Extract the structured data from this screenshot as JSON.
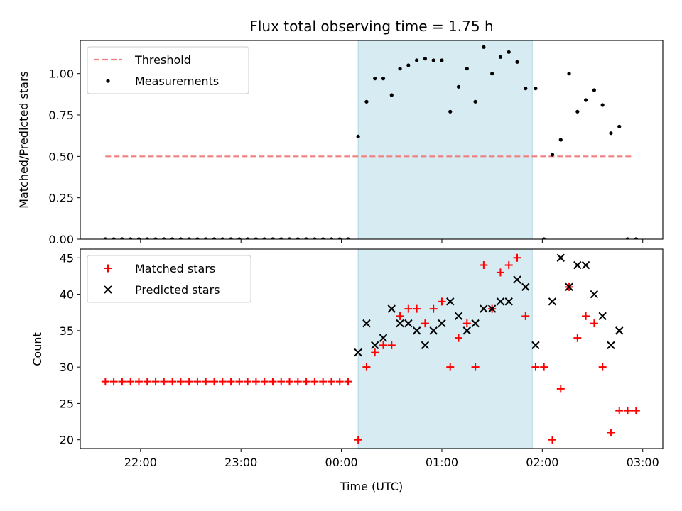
{
  "chart_data": [
    {
      "type": "scatter",
      "title": "Flux total observing time = 1.75 h",
      "ylabel": "Matched/Predicted stars",
      "xlabel": "",
      "xlim": [
        "21:24",
        "03:12"
      ],
      "ylim": [
        0,
        1.2
      ],
      "yticks": [
        0.0,
        0.25,
        0.5,
        0.75,
        1.0
      ],
      "ytick_labels": [
        "0.00",
        "0.25",
        "0.50",
        "0.75",
        "1.00"
      ],
      "xticks": [
        "22:00",
        "23:00",
        "00:00",
        "01:00",
        "02:00",
        "03:00"
      ],
      "legend_position": "upper left",
      "shaded_region": {
        "start": "00:10",
        "end": "01:54",
        "color": "#add8e6"
      },
      "series": [
        {
          "name": "Threshold",
          "kind": "hline",
          "style": "dashed",
          "color": "#f08080",
          "y": 0.5,
          "x_start": "21:39",
          "x_end": "02:54"
        },
        {
          "name": "Measurements",
          "kind": "points",
          "color": "#000000",
          "points": [
            [
              "21:39",
              0
            ],
            [
              "21:44",
              0
            ],
            [
              "21:49",
              0
            ],
            [
              "21:54",
              0
            ],
            [
              "21:59",
              0
            ],
            [
              "22:04",
              0
            ],
            [
              "22:09",
              0
            ],
            [
              "22:14",
              0
            ],
            [
              "22:19",
              0
            ],
            [
              "22:24",
              0
            ],
            [
              "22:29",
              0
            ],
            [
              "22:34",
              0
            ],
            [
              "22:39",
              0
            ],
            [
              "22:44",
              0
            ],
            [
              "22:49",
              0
            ],
            [
              "22:54",
              0
            ],
            [
              "22:59",
              0
            ],
            [
              "23:04",
              0
            ],
            [
              "23:09",
              0
            ],
            [
              "23:14",
              0
            ],
            [
              "23:19",
              0
            ],
            [
              "23:24",
              0
            ],
            [
              "23:29",
              0
            ],
            [
              "23:34",
              0
            ],
            [
              "23:39",
              0
            ],
            [
              "23:44",
              0
            ],
            [
              "23:49",
              0
            ],
            [
              "23:54",
              0
            ],
            [
              "23:59",
              0
            ],
            [
              "00:04",
              0
            ],
            [
              "00:10",
              0.62
            ],
            [
              "00:15",
              0.83
            ],
            [
              "00:20",
              0.97
            ],
            [
              "00:25",
              0.97
            ],
            [
              "00:30",
              0.87
            ],
            [
              "00:35",
              1.03
            ],
            [
              "00:40",
              1.05
            ],
            [
              "00:45",
              1.08
            ],
            [
              "00:50",
              1.09
            ],
            [
              "00:55",
              1.08
            ],
            [
              "01:00",
              1.08
            ],
            [
              "01:05",
              0.77
            ],
            [
              "01:10",
              0.92
            ],
            [
              "01:15",
              1.03
            ],
            [
              "01:20",
              0.83
            ],
            [
              "01:25",
              1.16
            ],
            [
              "01:30",
              1.0
            ],
            [
              "01:35",
              1.1
            ],
            [
              "01:40",
              1.13
            ],
            [
              "01:45",
              1.07
            ],
            [
              "01:50",
              0.91
            ],
            [
              "01:56",
              0.91
            ],
            [
              "02:01",
              0
            ],
            [
              "02:06",
              0.51
            ],
            [
              "02:11",
              0.6
            ],
            [
              "02:16",
              1.0
            ],
            [
              "02:21",
              0.77
            ],
            [
              "02:26",
              0.84
            ],
            [
              "02:31",
              0.9
            ],
            [
              "02:36",
              0.81
            ],
            [
              "02:41",
              0.64
            ],
            [
              "02:46",
              0.68
            ],
            [
              "02:51",
              0
            ],
            [
              "02:56",
              0
            ]
          ]
        }
      ]
    },
    {
      "type": "scatter",
      "title": "",
      "ylabel": "Count",
      "xlabel": "Time (UTC)",
      "xlim": [
        "21:24",
        "03:12"
      ],
      "ylim": [
        18.8,
        46.2
      ],
      "yticks": [
        20,
        25,
        30,
        35,
        40,
        45
      ],
      "ytick_labels": [
        "20",
        "25",
        "30",
        "35",
        "40",
        "45"
      ],
      "xticks": [
        "22:00",
        "23:00",
        "00:00",
        "01:00",
        "02:00",
        "03:00"
      ],
      "xtick_labels": [
        "22:00",
        "23:00",
        "00:00",
        "01:00",
        "02:00",
        "03:00"
      ],
      "legend_position": "upper left",
      "shaded_region": {
        "start": "00:10",
        "end": "01:54",
        "color": "#add8e6"
      },
      "series": [
        {
          "name": "Matched stars",
          "kind": "plus",
          "color": "#ff0000",
          "points": [
            [
              "21:39",
              28
            ],
            [
              "21:44",
              28
            ],
            [
              "21:49",
              28
            ],
            [
              "21:54",
              28
            ],
            [
              "21:59",
              28
            ],
            [
              "22:04",
              28
            ],
            [
              "22:09",
              28
            ],
            [
              "22:14",
              28
            ],
            [
              "22:19",
              28
            ],
            [
              "22:24",
              28
            ],
            [
              "22:29",
              28
            ],
            [
              "22:34",
              28
            ],
            [
              "22:39",
              28
            ],
            [
              "22:44",
              28
            ],
            [
              "22:49",
              28
            ],
            [
              "22:54",
              28
            ],
            [
              "22:59",
              28
            ],
            [
              "23:04",
              28
            ],
            [
              "23:09",
              28
            ],
            [
              "23:14",
              28
            ],
            [
              "23:19",
              28
            ],
            [
              "23:24",
              28
            ],
            [
              "23:29",
              28
            ],
            [
              "23:34",
              28
            ],
            [
              "23:39",
              28
            ],
            [
              "23:44",
              28
            ],
            [
              "23:49",
              28
            ],
            [
              "23:54",
              28
            ],
            [
              "23:59",
              28
            ],
            [
              "00:04",
              28
            ],
            [
              "00:10",
              20
            ],
            [
              "00:15",
              30
            ],
            [
              "00:20",
              32
            ],
            [
              "00:25",
              33
            ],
            [
              "00:30",
              33
            ],
            [
              "00:35",
              37
            ],
            [
              "00:40",
              38
            ],
            [
              "00:45",
              38
            ],
            [
              "00:50",
              36
            ],
            [
              "00:55",
              38
            ],
            [
              "01:00",
              39
            ],
            [
              "01:05",
              30
            ],
            [
              "01:10",
              34
            ],
            [
              "01:15",
              36
            ],
            [
              "01:20",
              30
            ],
            [
              "01:25",
              44
            ],
            [
              "01:30",
              38
            ],
            [
              "01:35",
              43
            ],
            [
              "01:40",
              44
            ],
            [
              "01:45",
              45
            ],
            [
              "01:50",
              37
            ],
            [
              "01:56",
              30
            ],
            [
              "02:01",
              30
            ],
            [
              "02:06",
              20
            ],
            [
              "02:11",
              27
            ],
            [
              "02:16",
              41
            ],
            [
              "02:21",
              34
            ],
            [
              "02:26",
              37
            ],
            [
              "02:31",
              36
            ],
            [
              "02:36",
              30
            ],
            [
              "02:41",
              21
            ],
            [
              "02:46",
              24
            ],
            [
              "02:51",
              24
            ],
            [
              "02:56",
              24
            ]
          ]
        },
        {
          "name": "Predicted stars",
          "kind": "x",
          "color": "#000000",
          "points": [
            [
              "00:10",
              32
            ],
            [
              "00:15",
              36
            ],
            [
              "00:20",
              33
            ],
            [
              "00:25",
              34
            ],
            [
              "00:30",
              38
            ],
            [
              "00:35",
              36
            ],
            [
              "00:40",
              36
            ],
            [
              "00:45",
              35
            ],
            [
              "00:50",
              33
            ],
            [
              "00:55",
              35
            ],
            [
              "01:00",
              36
            ],
            [
              "01:05",
              39
            ],
            [
              "01:10",
              37
            ],
            [
              "01:15",
              35
            ],
            [
              "01:20",
              36
            ],
            [
              "01:25",
              38
            ],
            [
              "01:30",
              38
            ],
            [
              "01:35",
              39
            ],
            [
              "01:40",
              39
            ],
            [
              "01:45",
              42
            ],
            [
              "01:50",
              41
            ],
            [
              "01:56",
              33
            ],
            [
              "02:06",
              39
            ],
            [
              "02:11",
              45
            ],
            [
              "02:16",
              41
            ],
            [
              "02:21",
              44
            ],
            [
              "02:26",
              44
            ],
            [
              "02:31",
              40
            ],
            [
              "02:36",
              37
            ],
            [
              "02:41",
              33
            ],
            [
              "02:46",
              35
            ]
          ]
        }
      ]
    }
  ]
}
